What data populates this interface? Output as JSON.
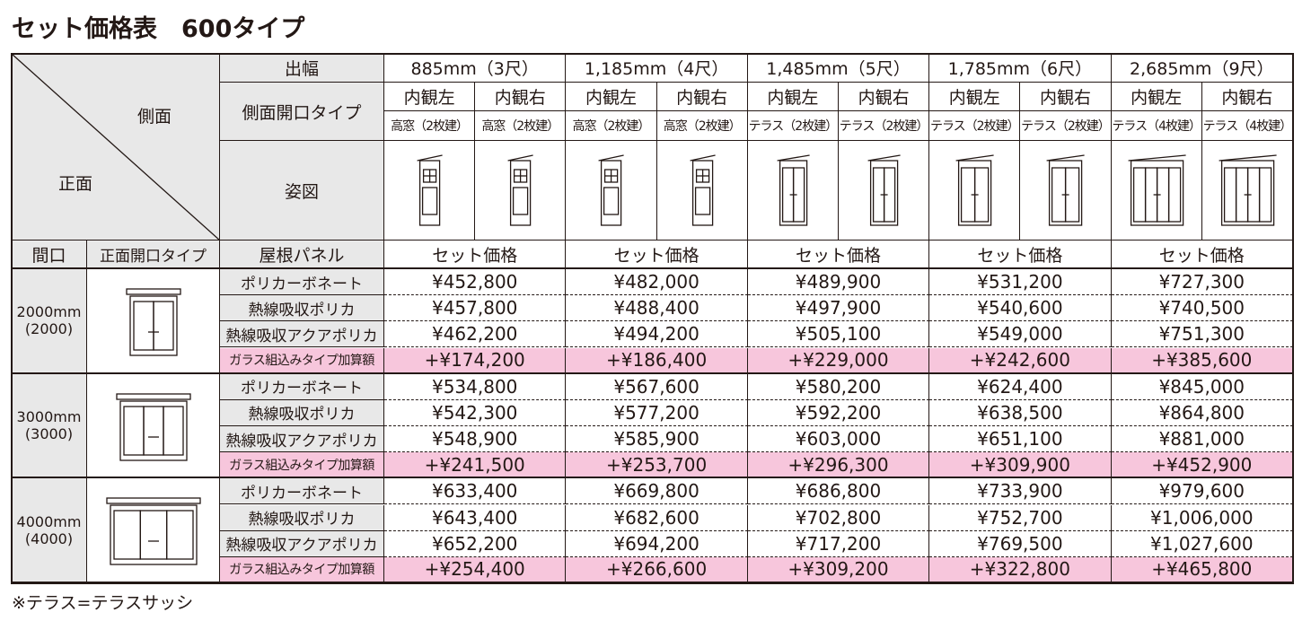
{
  "header": {
    "title": "セット価格表　600タイプ"
  },
  "table": {
    "corner": {
      "side": "側面",
      "front": "正面"
    },
    "row_labels": {
      "depth": "出幅",
      "side_opening": "側面開口タイプ",
      "figure": "姿図"
    },
    "price_header": {
      "width": "間口",
      "front_opening": "正面開口タイプ",
      "roof": "屋根パネル"
    },
    "columns": [
      {
        "depth": "885mm（3尺）",
        "price_label": "セット価格",
        "sides": [
          {
            "view": "内観左",
            "type": "高窓（2枚建）"
          },
          {
            "view": "内観右",
            "type": "高窓（2枚建）"
          }
        ]
      },
      {
        "depth": "1,185mm（4尺）",
        "price_label": "セット価格",
        "sides": [
          {
            "view": "内観左",
            "type": "高窓（2枚建）"
          },
          {
            "view": "内観右",
            "type": "高窓（2枚建）"
          }
        ]
      },
      {
        "depth": "1,485mm（5尺）",
        "price_label": "セット価格",
        "sides": [
          {
            "view": "内観左",
            "type": "テラス（2枚建）"
          },
          {
            "view": "内観右",
            "type": "テラス（2枚建）"
          }
        ]
      },
      {
        "depth": "1,785mm（6尺）",
        "price_label": "セット価格",
        "sides": [
          {
            "view": "内観左",
            "type": "テラス（2枚建）"
          },
          {
            "view": "内観右",
            "type": "テラス（2枚建）"
          }
        ]
      },
      {
        "depth": "2,685mm（9尺）",
        "price_label": "セット価格",
        "sides": [
          {
            "view": "内観左",
            "type": "テラス（4枚建）"
          },
          {
            "view": "内観右",
            "type": "テラス（4枚建）"
          }
        ]
      }
    ],
    "groups": [
      {
        "width": "2000mm",
        "width_sub": "(2000)",
        "rows": [
          {
            "panel": "ポリカーボネート",
            "prices": [
              "¥452,800",
              "¥482,000",
              "¥489,900",
              "¥531,200",
              "¥727,300"
            ]
          },
          {
            "panel": "熱線吸収ポリカ",
            "prices": [
              "¥457,800",
              "¥488,400",
              "¥497,900",
              "¥540,600",
              "¥740,500"
            ]
          },
          {
            "panel": "熱線吸収アクアポリカ",
            "prices": [
              "¥462,200",
              "¥494,200",
              "¥505,100",
              "¥549,000",
              "¥751,300"
            ]
          },
          {
            "panel": "ガラス組込みタイプ加算額",
            "prices": [
              "+¥174,200",
              "+¥186,400",
              "+¥229,000",
              "+¥242,600",
              "+¥385,600"
            ]
          }
        ]
      },
      {
        "width": "3000mm",
        "width_sub": "(3000)",
        "rows": [
          {
            "panel": "ポリカーボネート",
            "prices": [
              "¥534,800",
              "¥567,600",
              "¥580,200",
              "¥624,400",
              "¥845,000"
            ]
          },
          {
            "panel": "熱線吸収ポリカ",
            "prices": [
              "¥542,300",
              "¥577,200",
              "¥592,200",
              "¥638,500",
              "¥864,800"
            ]
          },
          {
            "panel": "熱線吸収アクアポリカ",
            "prices": [
              "¥548,900",
              "¥585,900",
              "¥603,000",
              "¥651,100",
              "¥881,000"
            ]
          },
          {
            "panel": "ガラス組込みタイプ加算額",
            "prices": [
              "+¥241,500",
              "+¥253,700",
              "+¥296,300",
              "+¥309,900",
              "+¥452,900"
            ]
          }
        ]
      },
      {
        "width": "4000mm",
        "width_sub": "(4000)",
        "rows": [
          {
            "panel": "ポリカーボネート",
            "prices": [
              "¥633,400",
              "¥669,800",
              "¥686,800",
              "¥733,900",
              "¥979,600"
            ]
          },
          {
            "panel": "熱線吸収ポリカ",
            "prices": [
              "¥643,400",
              "¥682,600",
              "¥702,800",
              "¥752,700",
              "¥1,006,000"
            ]
          },
          {
            "panel": "熱線吸収アクアポリカ",
            "prices": [
              "¥652,200",
              "¥694,200",
              "¥717,200",
              "¥769,500",
              "¥1,027,600"
            ]
          },
          {
            "panel": "ガラス組込みタイプ加算額",
            "prices": [
              "+¥254,400",
              "+¥266,600",
              "+¥309,200",
              "+¥322,800",
              "+¥465,800"
            ]
          }
        ]
      }
    ]
  },
  "footnote": "※テラス=テラスサッシ"
}
